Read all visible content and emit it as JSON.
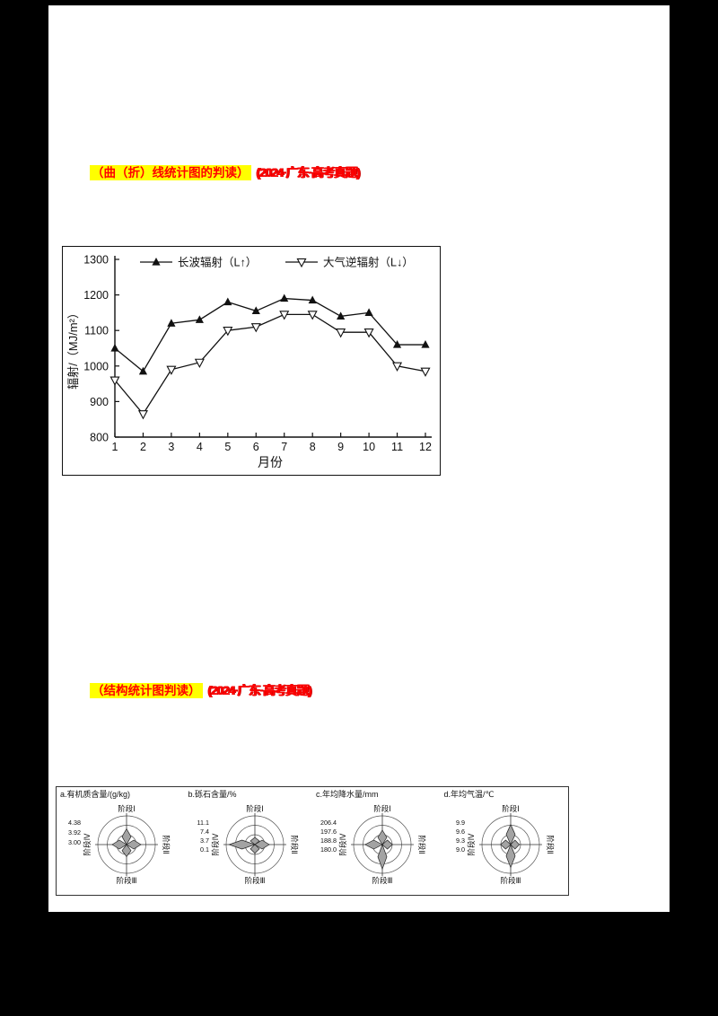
{
  "page": {
    "bg": "#000000",
    "paper": "#ffffff"
  },
  "colors": {
    "highlight_bg": "#ffff00",
    "heading_red": "#ff0000",
    "petal_fill": "#a3a3a3",
    "ink": "#111111"
  },
  "sections": [
    {
      "heading_highlight": "（曲（折）线统计图的判读）",
      "heading_tag": "(2024·广东·高考真题)"
    },
    {
      "heading_highlight": "（结构统计图判读）",
      "heading_tag": "(2024·广东·高考真题)"
    }
  ],
  "chart_data": [
    {
      "type": "line",
      "title": "",
      "x": [
        1,
        2,
        3,
        4,
        5,
        6,
        7,
        8,
        9,
        10,
        11,
        12
      ],
      "xlabel": "月份",
      "ylabel": "辐射/（MJ/m²）",
      "ylim": [
        800,
        1300
      ],
      "yticks": [
        800,
        900,
        1000,
        1100,
        1200,
        1300
      ],
      "legend_position": "top",
      "grid": false,
      "series": [
        {
          "name": "长波辐射（L↑）",
          "marker": "triangle-up-filled",
          "values": [
            1050,
            985,
            1120,
            1130,
            1180,
            1155,
            1190,
            1185,
            1140,
            1150,
            1060,
            1060
          ]
        },
        {
          "name": "大气逆辐射（L↓）",
          "marker": "triangle-down-open",
          "values": [
            960,
            865,
            990,
            1010,
            1100,
            1110,
            1145,
            1145,
            1095,
            1095,
            1000,
            985
          ]
        }
      ]
    },
    {
      "type": "rose",
      "stage_labels": [
        "阶段Ⅰ",
        "阶段Ⅱ",
        "阶段Ⅲ",
        "阶段Ⅳ"
      ],
      "charts": [
        {
          "title": "a.有机质含量/(g/kg)",
          "ring_labels": [
            "4.38",
            "3.92",
            "3.00"
          ],
          "petals": [
            0.55,
            0.5,
            0.42,
            0.5
          ]
        },
        {
          "title": "b.砾石含量/%",
          "ring_labels": [
            "11.1",
            "7.4",
            "3.7",
            "0.1"
          ],
          "petals": [
            0.25,
            0.5,
            0.3,
            0.9
          ]
        },
        {
          "title": "c.年均降水量/mm",
          "ring_labels": [
            "206.4",
            "197.6",
            "188.8",
            "180.0"
          ],
          "petals": [
            0.5,
            0.35,
            0.85,
            0.6
          ]
        },
        {
          "title": "d.年均气温/℃",
          "ring_labels": [
            "9.9",
            "9.6",
            "9.3",
            "9.0"
          ],
          "petals": [
            0.7,
            0.3,
            0.8,
            0.35
          ]
        }
      ]
    }
  ]
}
